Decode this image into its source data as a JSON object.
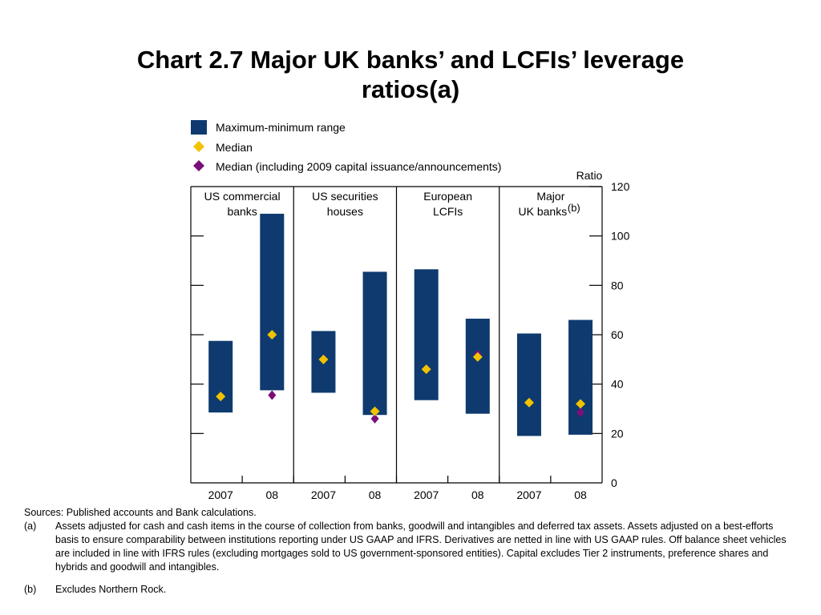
{
  "title_line1": "Chart 2.7  Major UK banks’ and LCFIs’ leverage",
  "title_line2": "ratios(a)",
  "chart_data": {
    "type": "range-bar",
    "ylabel": "Ratio",
    "ylim": [
      0,
      120
    ],
    "y_ticks": [
      0,
      20,
      40,
      60,
      80,
      100,
      120
    ],
    "legend": {
      "range": "Maximum-minimum range",
      "median": "Median",
      "median_incl": "Median (including 2009 capital issuance/announcements)"
    },
    "colors": {
      "range": "#0e3a6f",
      "median": "#f2c200",
      "median_incl": "#7a0f7a"
    },
    "groups": [
      {
        "label_line1": "US commercial",
        "label_line2": "banks",
        "superscript": "",
        "bars": [
          {
            "x": "2007",
            "min": 28.5,
            "max": 57.5,
            "median": 35,
            "median_incl": null
          },
          {
            "x": "08",
            "min": 37.5,
            "max": 109,
            "median": 60,
            "median_incl": 35.5
          }
        ]
      },
      {
        "label_line1": "US securities",
        "label_line2": "houses",
        "superscript": "",
        "bars": [
          {
            "x": "2007",
            "min": 36.5,
            "max": 61.5,
            "median": 50,
            "median_incl": null
          },
          {
            "x": "08",
            "min": 27.5,
            "max": 85.5,
            "median": 29,
            "median_incl": 26
          }
        ]
      },
      {
        "label_line1": "European",
        "label_line2": "LCFIs",
        "superscript": "",
        "bars": [
          {
            "x": "2007",
            "min": 33.5,
            "max": 86.5,
            "median": 46,
            "median_incl": null
          },
          {
            "x": "08",
            "min": 28,
            "max": 66.5,
            "median": 51,
            "median_incl": 52
          }
        ]
      },
      {
        "label_line1": "Major",
        "label_line2": "UK banks",
        "superscript": "(b)",
        "bars": [
          {
            "x": "2007",
            "min": 19,
            "max": 60.5,
            "median": 32.5,
            "median_incl": null
          },
          {
            "x": "08",
            "min": 19.5,
            "max": 66,
            "median": 32,
            "median_incl": 28.5
          }
        ]
      }
    ]
  },
  "notes": {
    "sources": "Sources:  Published accounts and Bank calculations.",
    "a_key": "(a)",
    "a_text": "Assets adjusted for cash and cash items in the course of collection from banks, goodwill and intangibles and deferred tax assets.  Assets adjusted on a best-efforts basis to ensure comparability between institutions reporting under US GAAP and IFRS.  Derivatives are netted in line with US GAAP rules.  Off balance sheet vehicles are included in line with IFRS rules (excluding mortgages sold to US government-sponsored entities).  Capital excludes Tier 2 instruments, preference shares and hybrids and goodwill and intangibles.",
    "b_key": "(b)",
    "b_text": "Excludes Northern Rock."
  }
}
